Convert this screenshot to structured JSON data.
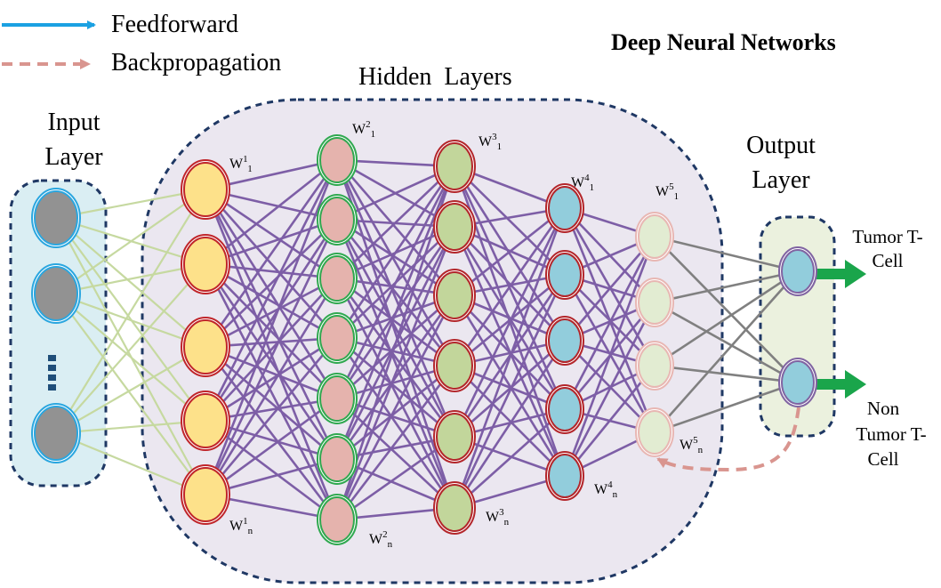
{
  "title": "Deep Neural Networks",
  "legend": [
    {
      "label": "Feedforward",
      "color": "#1ba1e2",
      "style": "solid-arrow"
    },
    {
      "label": "Backpropagation",
      "color": "#d9958f",
      "style": "dashed-arrow"
    }
  ],
  "regions": {
    "input": {
      "label_line1": "Input",
      "label_line2": "Layer"
    },
    "hidden": {
      "label": "Hidden  Layers"
    },
    "output": {
      "label_line1": "Output",
      "label_line2": "Layer"
    }
  },
  "weights": [
    {
      "base": "W",
      "sup": "1",
      "sub": "1"
    },
    {
      "base": "W",
      "sup": "1",
      "sub": "n"
    },
    {
      "base": "W",
      "sup": "2",
      "sub": "1"
    },
    {
      "base": "W",
      "sup": "2",
      "sub": "n"
    },
    {
      "base": "W",
      "sup": "3",
      "sub": "1"
    },
    {
      "base": "W",
      "sup": "3",
      "sub": "n"
    },
    {
      "base": "W",
      "sup": "4",
      "sub": "1"
    },
    {
      "base": "W",
      "sup": "4",
      "sub": "n"
    },
    {
      "base": "W",
      "sup": "5",
      "sub": "1"
    },
    {
      "base": "W",
      "sup": "5",
      "sub": "n"
    }
  ],
  "outputs": [
    {
      "line1": "Tumor T-",
      "line2": "Cell",
      "line3": ""
    },
    {
      "line1": "Non",
      "line2": "Tumor T-",
      "line3": "Cell"
    }
  ],
  "ellipsis": "⋮",
  "colors": {
    "input_fill": "#929292",
    "input_ring": "#2aa6df",
    "h1_fill": "#fde18a",
    "h1_ring": "#c0252a",
    "h2_fill": "#e5b3ad",
    "h2_ring": "#2fa84f",
    "h3_fill": "#c2d69b",
    "h3_ring": "#b3262b",
    "h4_fill": "#92cddc",
    "h4_ring": "#b3262b",
    "h5_fill": "#e2ecd2",
    "h5_ring": "#e8b7b3",
    "out_fill": "#92cddc",
    "out_ring": "#8064a2",
    "edge_input": "#c6d9a0",
    "edge_hidden": "#7d5ea6",
    "edge_output": "#808080",
    "output_arrow": "#1aa54b",
    "region_border": "#1f3864"
  }
}
